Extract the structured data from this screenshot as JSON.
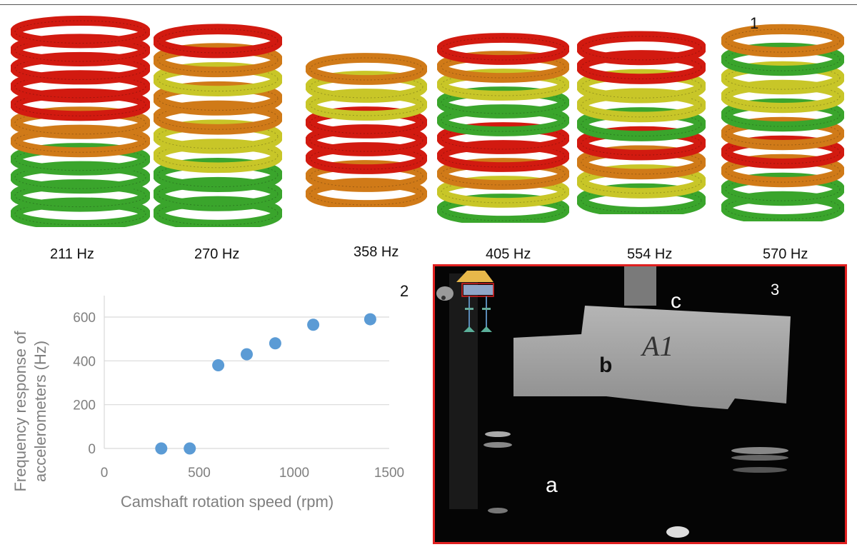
{
  "panel_labels": {
    "p1": "1",
    "p2": "2",
    "p3": "3"
  },
  "springs": [
    {
      "label": "211 Hz"
    },
    {
      "label": "270 Hz"
    },
    {
      "label": "358 Hz"
    },
    {
      "label": "405 Hz"
    },
    {
      "label": "554 Hz"
    },
    {
      "label": "570 Hz"
    }
  ],
  "colors": {
    "red": "#d21a10",
    "orange": "#d07a18",
    "yellow": "#c8c628",
    "green": "#3aa52c",
    "marker": "#5b9bd5",
    "frame": "#e02020"
  },
  "chart_data": {
    "type": "scatter",
    "title": "",
    "xlabel": "Camshaft rotation speed (rpm)",
    "ylabel": "Frequency response of accelerometers (Hz)",
    "xlim": [
      0,
      1500
    ],
    "ylim": [
      0,
      600
    ],
    "xticks": [
      "0",
      "500",
      "1000",
      "1500"
    ],
    "yticks": [
      "0",
      "200",
      "400",
      "600"
    ],
    "grid": "horizontal",
    "series": [
      {
        "x": [
          300,
          450,
          600,
          750,
          900,
          1100,
          1400
        ],
        "y": [
          0,
          0,
          380,
          430,
          480,
          565,
          590
        ]
      }
    ]
  },
  "photo": {
    "letters": {
      "a": "a",
      "b": "b",
      "c": "c"
    },
    "sample_mark": "A1"
  }
}
